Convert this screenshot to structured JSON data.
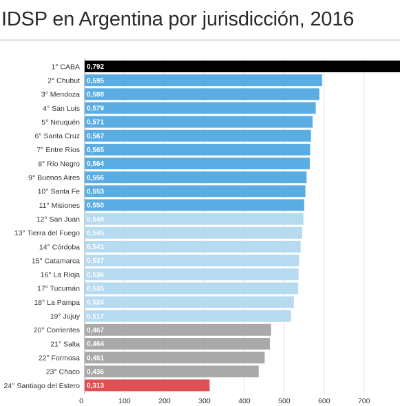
{
  "chart_data": {
    "type": "bar",
    "orientation": "horizontal",
    "title": "IDSP en Argentina por jurisdicción, 2016",
    "categories": [
      "1° CABA",
      "2° Chubut",
      "3° Mendoza",
      "4° San Luis",
      "5° Neuquén",
      "6° Santa Cruz",
      "7° Entre Ríos",
      "8° Río Negro",
      "9° Buenos Aires",
      "10° Santa Fe",
      "11° Misiones",
      "12° San Juan",
      "13° Tierra del Fuego",
      "14° Córdoba",
      "15° Catamarca",
      "16° La Rioja",
      "17° Tucumán",
      "18° La Pampa",
      "19° Jujuy",
      "20° Corrientes",
      "21° Salta",
      "22° Formosa",
      "23° Chaco",
      "24° Santiago del Estero"
    ],
    "values": [
      0.792,
      0.595,
      0.588,
      0.579,
      0.571,
      0.567,
      0.565,
      0.564,
      0.556,
      0.553,
      0.55,
      0.548,
      0.545,
      0.541,
      0.537,
      0.536,
      0.535,
      0.524,
      0.517,
      0.467,
      0.464,
      0.451,
      0.436,
      0.313
    ],
    "value_labels": [
      "0,792",
      "0,595",
      "0,588",
      "0,579",
      "0,571",
      "0,567",
      "0,565",
      "0,564",
      "0,556",
      "0,553",
      "0,550",
      "0,548",
      "0,545",
      "0,541",
      "0,537",
      "0,536",
      "0,535",
      "0,524",
      "0,517",
      "0,467",
      "0,464",
      "0,451",
      "0,436",
      "0,313"
    ],
    "xticks": [
      0,
      100,
      200,
      300,
      400,
      500,
      600,
      700
    ],
    "xtick_labels": [
      "0",
      "100",
      "200",
      "300",
      "400",
      "500",
      "600",
      "700"
    ],
    "xlim": [
      0,
      790
    ],
    "xlabel": "",
    "ylabel": "",
    "grid": true,
    "legend": "none",
    "colors": {
      "top": "#000000",
      "high": "#5aade3",
      "mid": "#b6daf0",
      "low": "#a9a9a9",
      "bottom": "#e04f53",
      "gridline": "#e3e3e3",
      "axis": "#9a9a9a"
    },
    "bar_groups": [
      "top",
      "high",
      "high",
      "high",
      "high",
      "high",
      "high",
      "high",
      "high",
      "high",
      "high",
      "mid",
      "mid",
      "mid",
      "mid",
      "mid",
      "mid",
      "mid",
      "mid",
      "low",
      "low",
      "low",
      "low",
      "bottom"
    ]
  }
}
